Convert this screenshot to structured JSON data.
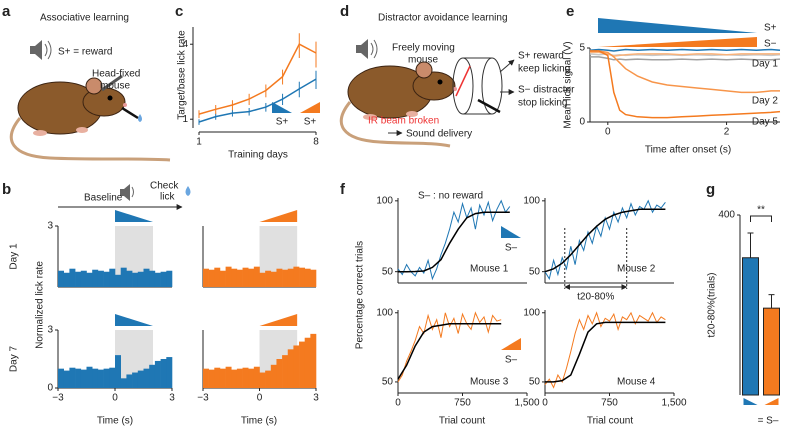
{
  "figure": {
    "panel_labels": [
      "a",
      "b",
      "c",
      "d",
      "e",
      "f",
      "g"
    ],
    "a": {
      "title": "Associative learning",
      "reward": "S+ = reward",
      "mouse": [
        "Head-fixed",
        "mouse"
      ]
    },
    "b": {
      "baseline": "Baseline",
      "check": [
        "Check",
        "lick"
      ]
    },
    "d": {
      "title": "Distractor avoidance learning",
      "mouse": [
        "Freely moving",
        "mouse"
      ],
      "s_plus": [
        "S+ reward",
        "keep licking"
      ],
      "s_minus": [
        "S− distractor",
        "stop licking"
      ],
      "ir": "IR beam broken",
      "sound": "Sound delivery"
    },
    "f": {
      "title": "S– : no reward"
    }
  },
  "chart_data": [
    {
      "type": "line",
      "ylabel": "Target/base lick rate",
      "xlabel": "Training days",
      "x": [
        1,
        2,
        3,
        4,
        5,
        6,
        7,
        8
      ],
      "xlim": [
        1,
        8
      ],
      "xticks": [
        1,
        8
      ],
      "ylim": [
        0.85,
        5.5
      ],
      "yticks": [
        1,
        4
      ],
      "log_y": true,
      "series": [
        {
          "name": "S+",
          "color": "#1f77b4",
          "values": [
            0.95,
            1.05,
            1.12,
            1.15,
            1.25,
            1.45,
            1.75,
            2.1
          ],
          "errors": [
            0.05,
            0.06,
            0.07,
            0.08,
            0.1,
            0.15,
            0.25,
            0.35
          ]
        },
        {
          "name": "S+",
          "color": "#f47a1f",
          "values": [
            1.1,
            1.2,
            1.3,
            1.45,
            1.7,
            2.2,
            4.0,
            3.4
          ],
          "errors": [
            0.08,
            0.1,
            0.12,
            0.15,
            0.2,
            0.3,
            0.9,
            0.8
          ]
        }
      ]
    },
    {
      "type": "histogram",
      "row_label": "Day 1",
      "color": "#1f77b4",
      "bins": [
        -3,
        -2.7,
        -2.4,
        -2.1,
        -1.8,
        -1.5,
        -1.2,
        -0.9,
        -0.6,
        -0.3,
        0,
        0.3,
        0.6,
        0.9,
        1.2,
        1.5,
        1.8,
        2.1,
        2.4,
        2.7,
        3
      ],
      "values": [
        0.8,
        0.7,
        0.9,
        0.75,
        0.8,
        0.7,
        0.85,
        0.8,
        0.75,
        0.9,
        0.6,
        0.95,
        0.8,
        0.7,
        0.75,
        0.9,
        0.8,
        0.7,
        0.75,
        0.8
      ],
      "xlim": [
        -3,
        3
      ],
      "ylim": [
        0,
        3
      ],
      "yticks": [
        3
      ],
      "shaded_span": [
        0,
        2
      ]
    },
    {
      "type": "histogram",
      "color": "#f47a1f",
      "bins": [
        -3,
        -2.7,
        -2.4,
        -2.1,
        -1.8,
        -1.5,
        -1.2,
        -0.9,
        -0.6,
        -0.3,
        0,
        0.3,
        0.6,
        0.9,
        1.2,
        1.5,
        1.8,
        2.1,
        2.4,
        2.7,
        3
      ],
      "values": [
        0.9,
        0.85,
        0.95,
        0.8,
        1.0,
        0.9,
        0.85,
        0.95,
        0.9,
        1.0,
        0.7,
        0.8,
        0.75,
        0.9,
        0.85,
        0.9,
        1.0,
        0.95,
        0.9,
        0.85
      ],
      "xlim": [
        -3,
        3
      ],
      "ylim": [
        0,
        3
      ],
      "shaded_span": [
        0,
        2
      ]
    },
    {
      "type": "histogram",
      "row_label": "Day 7",
      "ylabel": "Normalized lick rate",
      "xlabel": "Time (s)",
      "color": "#1f77b4",
      "bins": [
        -3,
        -2.7,
        -2.4,
        -2.1,
        -1.8,
        -1.5,
        -1.2,
        -0.9,
        -0.6,
        -0.3,
        0,
        0.3,
        0.6,
        0.9,
        1.2,
        1.5,
        1.8,
        2.1,
        2.4,
        2.7,
        3
      ],
      "values": [
        1.0,
        0.9,
        1.05,
        1.0,
        0.95,
        1.1,
        1.0,
        0.95,
        1.0,
        1.05,
        1.7,
        0.5,
        0.7,
        0.8,
        0.9,
        1.0,
        1.2,
        1.4,
        1.5,
        1.6
      ],
      "xlim": [
        -3,
        3
      ],
      "ylim": [
        0,
        3
      ],
      "yticks": [
        0,
        3
      ],
      "xticks": [
        {
          "value": -3,
          "label": "−3"
        },
        0,
        3
      ],
      "shaded_span": [
        0,
        2
      ]
    },
    {
      "type": "histogram",
      "xlabel": "Time (s)",
      "color": "#f47a1f",
      "bins": [
        -3,
        -2.7,
        -2.4,
        -2.1,
        -1.8,
        -1.5,
        -1.2,
        -0.9,
        -0.6,
        -0.3,
        0,
        0.3,
        0.6,
        0.9,
        1.2,
        1.5,
        1.8,
        2.1,
        2.4,
        2.7,
        3
      ],
      "values": [
        1.0,
        0.95,
        1.05,
        1.0,
        1.1,
        0.95,
        1.0,
        1.05,
        1.0,
        1.1,
        0.8,
        0.9,
        1.2,
        1.5,
        1.7,
        2.0,
        2.2,
        2.4,
        2.6,
        2.8
      ],
      "xlim": [
        -3,
        3
      ],
      "ylim": [
        0,
        3
      ],
      "xticks": [
        {
          "value": -3,
          "label": "−3"
        },
        0,
        3
      ],
      "shaded_span": [
        0,
        2
      ]
    },
    {
      "type": "line",
      "ylabel": "Mean lick signal (V)",
      "xlabel": "Time after onset (s)",
      "x": [
        -0.3,
        -0.15,
        0,
        0.1,
        0.2,
        0.3,
        0.5,
        0.75,
        1,
        1.25,
        1.5,
        1.75,
        2,
        2.25,
        2.5,
        2.75,
        2.9
      ],
      "xlim": [
        -0.3,
        2.9
      ],
      "ylim": [
        0,
        5
      ],
      "xticks": [
        0,
        2
      ],
      "yticks": [
        0,
        5
      ],
      "wedges": [
        {
          "label": "S+",
          "color": "#1f77b4"
        },
        {
          "label": "S−",
          "color": "#f47a1f"
        }
      ],
      "series": [
        {
          "color": "#1f77b4",
          "values": [
            4.85,
            4.9,
            4.85,
            4.8,
            4.85,
            4.9,
            4.85,
            4.9,
            4.85,
            4.9,
            4.85,
            4.9,
            4.85,
            4.9,
            4.85,
            4.9,
            4.85
          ]
        },
        {
          "color": "#c8c8c8",
          "values": [
            4.6,
            4.55,
            4.6,
            4.5,
            4.55,
            4.5,
            4.55,
            4.5,
            4.55,
            4.5,
            4.55,
            4.5,
            4.55,
            4.5,
            4.55,
            4.5,
            4.55
          ]
        },
        {
          "color": "#a0a0a0",
          "values": [
            4.4,
            4.4,
            4.3,
            4.2,
            4.25,
            4.2,
            4.25,
            4.2,
            4.2,
            4.25,
            4.2,
            4.25,
            4.2,
            4.25,
            4.2,
            4.2,
            4.25
          ]
        },
        {
          "name": "Day 1",
          "color": "#f9b27a",
          "values": [
            4.7,
            4.7,
            4.6,
            4.45,
            4.5,
            4.55,
            4.6,
            4.6,
            4.6,
            4.55,
            4.6,
            4.6,
            4.55,
            4.6,
            4.6,
            4.6,
            4.6
          ]
        },
        {
          "name": "Day 2",
          "color": "#f7954a",
          "values": [
            4.8,
            4.8,
            4.7,
            4.4,
            4.0,
            3.6,
            3.1,
            2.7,
            2.5,
            2.4,
            2.3,
            2.2,
            2.1,
            2.0,
            2.0,
            2.1,
            2.1
          ]
        },
        {
          "name": "Day 5",
          "color": "#f47a1f",
          "values": [
            4.8,
            4.8,
            4.5,
            2.0,
            0.8,
            0.5,
            0.35,
            0.3,
            0.3,
            0.35,
            0.4,
            0.45,
            0.5,
            0.55,
            0.6,
            0.65,
            0.7
          ]
        }
      ]
    },
    {
      "type": "line",
      "label": "Mouse 1",
      "ylabel": "Percentage correct trials",
      "xlim": [
        0,
        1500
      ],
      "ylim": [
        42,
        102
      ],
      "yticks": [
        50,
        100
      ],
      "series": [
        {
          "name": "S–",
          "color": "#1f77b4",
          "x": [
            0,
            50,
            100,
            150,
            200,
            250,
            300,
            350,
            400,
            450,
            500,
            550,
            600,
            650,
            700,
            750,
            800,
            850,
            900,
            950,
            1000,
            1050,
            1100,
            1150,
            1200,
            1250,
            1300
          ],
          "values": [
            52,
            48,
            55,
            50,
            47,
            53,
            49,
            58,
            45,
            52,
            62,
            70,
            80,
            92,
            85,
            98,
            88,
            95,
            80,
            97,
            90,
            99,
            86,
            94,
            100,
            92,
            96
          ]
        },
        {
          "color": "#000000",
          "x": [
            0,
            100,
            200,
            300,
            400,
            500,
            600,
            700,
            800,
            900,
            1000,
            1100,
            1200,
            1300
          ],
          "values": [
            50,
            50,
            50.1,
            50.5,
            53,
            58.5,
            70,
            80,
            88,
            91,
            92,
            92,
            92,
            92
          ]
        }
      ]
    },
    {
      "type": "line",
      "label": "Mouse 2",
      "xlim": [
        0,
        1500
      ],
      "ylim": [
        42,
        102
      ],
      "yticks": [
        50,
        100
      ],
      "interval": [
        230,
        950
      ],
      "interval_label": "t20-80%",
      "series": [
        {
          "color": "#1f77b4",
          "x": [
            0,
            50,
            100,
            150,
            200,
            250,
            300,
            350,
            400,
            450,
            500,
            550,
            600,
            650,
            700,
            750,
            800,
            850,
            900,
            950,
            1000,
            1050,
            1100,
            1150,
            1200,
            1250,
            1300,
            1350,
            1400
          ],
          "values": [
            50,
            45,
            58,
            48,
            60,
            52,
            68,
            55,
            72,
            65,
            78,
            70,
            82,
            75,
            88,
            80,
            92,
            85,
            95,
            88,
            98,
            90,
            96,
            94,
            100,
            92,
            97,
            95,
            99
          ]
        },
        {
          "color": "#000000",
          "x": [
            0,
            100,
            200,
            300,
            400,
            500,
            600,
            700,
            800,
            900,
            1000,
            1100,
            1200,
            1300,
            1400
          ],
          "values": [
            50,
            52,
            56,
            62,
            69,
            76,
            82,
            87,
            90,
            92,
            93,
            94,
            94,
            94,
            94
          ]
        }
      ]
    },
    {
      "type": "line",
      "label": "Mouse 3",
      "xlabel": "Trial count",
      "xlim": [
        0,
        1500
      ],
      "ylim": [
        42,
        102
      ],
      "yticks": [
        50,
        100
      ],
      "xticks": [
        0,
        750,
        {
          "value": 1500,
          "label": "1,500"
        }
      ],
      "series": [
        {
          "name": "S–",
          "color": "#f47a1f",
          "x": [
            0,
            50,
            100,
            150,
            200,
            250,
            300,
            350,
            400,
            450,
            500,
            550,
            600,
            650,
            700,
            750,
            800,
            850,
            900,
            950,
            1000,
            1050,
            1100,
            1150,
            1200
          ],
          "values": [
            50,
            55,
            65,
            72,
            80,
            90,
            85,
            98,
            88,
            95,
            82,
            100,
            90,
            96,
            85,
            99,
            92,
            88,
            100,
            93,
            97,
            86,
            98,
            94,
            95
          ]
        },
        {
          "color": "#000000",
          "x": [
            0,
            100,
            200,
            300,
            400,
            500,
            600,
            700,
            800,
            900,
            1000,
            1100,
            1200
          ],
          "values": [
            52,
            62,
            76,
            86,
            90,
            91,
            92,
            92,
            92,
            92,
            92,
            92,
            92
          ]
        }
      ]
    },
    {
      "type": "line",
      "label": "Mouse 4",
      "xlabel": "Trial count",
      "xlim": [
        0,
        1500
      ],
      "ylim": [
        42,
        102
      ],
      "yticks": [
        50,
        100
      ],
      "xticks": [
        0,
        750,
        {
          "value": 1500,
          "label": "1,500"
        }
      ],
      "series": [
        {
          "color": "#f47a1f",
          "x": [
            0,
            50,
            100,
            150,
            200,
            250,
            300,
            350,
            400,
            450,
            500,
            550,
            600,
            650,
            700,
            750,
            800,
            850,
            900,
            950,
            1000,
            1050,
            1100,
            1150,
            1200,
            1250,
            1300,
            1350,
            1400
          ],
          "values": [
            48,
            52,
            46,
            55,
            50,
            60,
            72,
            85,
            95,
            88,
            98,
            92,
            100,
            90,
            96,
            94,
            99,
            88,
            97,
            95,
            100,
            92,
            98,
            96,
            94,
            100,
            93,
            97,
            95
          ]
        },
        {
          "color": "#000000",
          "x": [
            0,
            100,
            200,
            300,
            400,
            500,
            600,
            700,
            800,
            900,
            1000,
            1100,
            1200,
            1300,
            1400
          ],
          "values": [
            50,
            50,
            51,
            55,
            70,
            86,
            92,
            93,
            93,
            93,
            93,
            93,
            93,
            93,
            93
          ]
        }
      ]
    },
    {
      "type": "bar",
      "ylabel": "t20-80%(trials)",
      "xlabel": "= S–",
      "categories": [
        null,
        null
      ],
      "values": [
        305,
        193
      ],
      "errors": [
        55,
        30
      ],
      "colors": [
        "#1f77b4",
        "#f47a1f"
      ],
      "ylim": [
        0,
        400
      ],
      "yticks": [
        400
      ],
      "annotation": "**"
    }
  ]
}
